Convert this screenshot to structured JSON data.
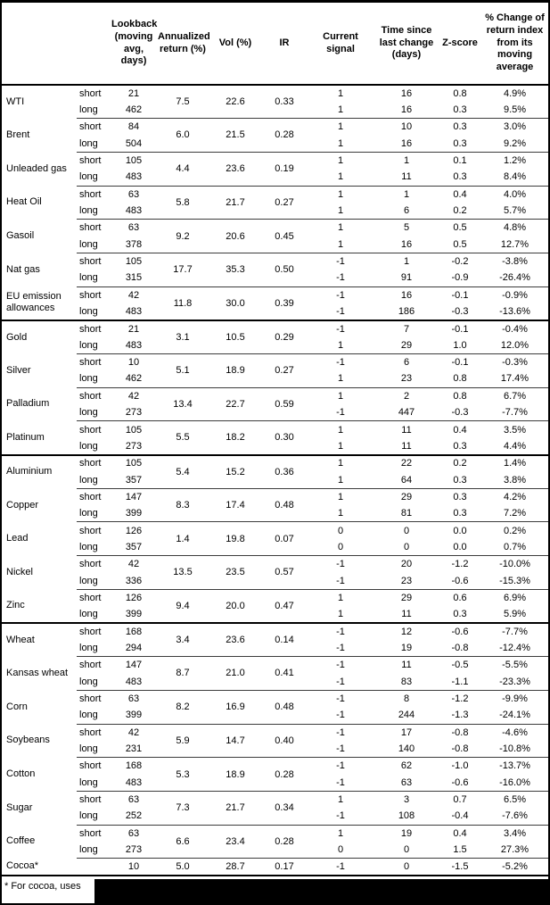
{
  "table": {
    "columns": [
      {
        "label": ""
      },
      {
        "label": ""
      },
      {
        "label": "Lookback\n(moving\navg, days)"
      },
      {
        "label": "Annualized\nreturn (%)"
      },
      {
        "label": "Vol (%)"
      },
      {
        "label": "IR"
      },
      {
        "label": "Current\nsignal"
      },
      {
        "label": "Time since\nlast change\n(days)"
      },
      {
        "label": "Z-score"
      },
      {
        "label": "% Change of\nreturn index\nfrom its\nmoving\naverage"
      }
    ],
    "row_labels": {
      "short": "short",
      "long": "long"
    },
    "sections": [
      {
        "name": "energy",
        "rows": [
          {
            "name": "WTI",
            "ann": "7.5",
            "vol": "22.6",
            "ir": "0.33",
            "short": [
              "21",
              "1",
              "16",
              "0.8",
              "4.9%"
            ],
            "long": [
              "462",
              "1",
              "16",
              "0.3",
              "9.5%"
            ]
          },
          {
            "name": "Brent",
            "ann": "6.0",
            "vol": "21.5",
            "ir": "0.28",
            "short": [
              "84",
              "1",
              "10",
              "0.3",
              "3.0%"
            ],
            "long": [
              "504",
              "1",
              "16",
              "0.3",
              "9.2%"
            ]
          },
          {
            "name": "Unleaded gas",
            "ann": "4.4",
            "vol": "23.6",
            "ir": "0.19",
            "short": [
              "105",
              "1",
              "1",
              "0.1",
              "1.2%"
            ],
            "long": [
              "483",
              "1",
              "11",
              "0.3",
              "8.4%"
            ]
          },
          {
            "name": "Heat Oil",
            "ann": "5.8",
            "vol": "21.7",
            "ir": "0.27",
            "short": [
              "63",
              "1",
              "1",
              "0.4",
              "4.0%"
            ],
            "long": [
              "483",
              "1",
              "6",
              "0.2",
              "5.7%"
            ]
          },
          {
            "name": "Gasoil",
            "ann": "9.2",
            "vol": "20.6",
            "ir": "0.45",
            "short": [
              "63",
              "1",
              "5",
              "0.5",
              "4.8%"
            ],
            "long": [
              "378",
              "1",
              "16",
              "0.5",
              "12.7%"
            ]
          },
          {
            "name": "Nat gas",
            "ann": "17.7",
            "vol": "35.3",
            "ir": "0.50",
            "short": [
              "105",
              "-1",
              "1",
              "-0.2",
              "-3.8%"
            ],
            "long": [
              "315",
              "-1",
              "91",
              "-0.9",
              "-26.4%"
            ]
          },
          {
            "name": "EU emission allowances",
            "ann": "11.8",
            "vol": "30.0",
            "ir": "0.39",
            "short": [
              "42",
              "-1",
              "16",
              "-0.1",
              "-0.9%"
            ],
            "long": [
              "483",
              "-1",
              "186",
              "-0.3",
              "-13.6%"
            ]
          }
        ]
      },
      {
        "name": "precious-metals",
        "rows": [
          {
            "name": "Gold",
            "ann": "3.1",
            "vol": "10.5",
            "ir": "0.29",
            "short": [
              "21",
              "-1",
              "7",
              "-0.1",
              "-0.4%"
            ],
            "long": [
              "483",
              "1",
              "29",
              "1.0",
              "12.0%"
            ]
          },
          {
            "name": "Silver",
            "ann": "5.1",
            "vol": "18.9",
            "ir": "0.27",
            "short": [
              "10",
              "-1",
              "6",
              "-0.1",
              "-0.3%"
            ],
            "long": [
              "462",
              "1",
              "23",
              "0.8",
              "17.4%"
            ]
          },
          {
            "name": "Palladium",
            "ann": "13.4",
            "vol": "22.7",
            "ir": "0.59",
            "short": [
              "42",
              "1",
              "2",
              "0.8",
              "6.7%"
            ],
            "long": [
              "273",
              "-1",
              "447",
              "-0.3",
              "-7.7%"
            ]
          },
          {
            "name": "Platinum",
            "ann": "5.5",
            "vol": "18.2",
            "ir": "0.30",
            "short": [
              "105",
              "1",
              "11",
              "0.4",
              "3.5%"
            ],
            "long": [
              "273",
              "1",
              "11",
              "0.3",
              "4.4%"
            ]
          }
        ]
      },
      {
        "name": "base-metals",
        "rows": [
          {
            "name": "Aluminium",
            "ann": "5.4",
            "vol": "15.2",
            "ir": "0.36",
            "short": [
              "105",
              "1",
              "22",
              "0.2",
              "1.4%"
            ],
            "long": [
              "357",
              "1",
              "64",
              "0.3",
              "3.8%"
            ]
          },
          {
            "name": "Copper",
            "ann": "8.3",
            "vol": "17.4",
            "ir": "0.48",
            "short": [
              "147",
              "1",
              "29",
              "0.3",
              "4.2%"
            ],
            "long": [
              "399",
              "1",
              "81",
              "0.3",
              "7.2%"
            ]
          },
          {
            "name": "Lead",
            "ann": "1.4",
            "vol": "19.8",
            "ir": "0.07",
            "short": [
              "126",
              "0",
              "0",
              "0.0",
              "0.2%"
            ],
            "long": [
              "357",
              "0",
              "0",
              "0.0",
              "0.7%"
            ]
          },
          {
            "name": "Nickel",
            "ann": "13.5",
            "vol": "23.5",
            "ir": "0.57",
            "short": [
              "42",
              "-1",
              "20",
              "-1.2",
              "-10.0%"
            ],
            "long": [
              "336",
              "-1",
              "23",
              "-0.6",
              "-15.3%"
            ]
          },
          {
            "name": "Zinc",
            "ann": "9.4",
            "vol": "20.0",
            "ir": "0.47",
            "short": [
              "126",
              "1",
              "29",
              "0.6",
              "6.9%"
            ],
            "long": [
              "399",
              "1",
              "11",
              "0.3",
              "5.9%"
            ]
          }
        ]
      },
      {
        "name": "agriculture",
        "rows": [
          {
            "name": "Wheat",
            "ann": "3.4",
            "vol": "23.6",
            "ir": "0.14",
            "short": [
              "168",
              "-1",
              "12",
              "-0.6",
              "-7.7%"
            ],
            "long": [
              "294",
              "-1",
              "19",
              "-0.8",
              "-12.4%"
            ]
          },
          {
            "name": "Kansas wheat",
            "ann": "8.7",
            "vol": "21.0",
            "ir": "0.41",
            "short": [
              "147",
              "-1",
              "11",
              "-0.5",
              "-5.5%"
            ],
            "long": [
              "483",
              "-1",
              "83",
              "-1.1",
              "-23.3%"
            ]
          },
          {
            "name": "Corn",
            "ann": "8.2",
            "vol": "16.9",
            "ir": "0.48",
            "short": [
              "63",
              "-1",
              "8",
              "-1.2",
              "-9.9%"
            ],
            "long": [
              "399",
              "-1",
              "244",
              "-1.3",
              "-24.1%"
            ]
          },
          {
            "name": "Soybeans",
            "ann": "5.9",
            "vol": "14.7",
            "ir": "0.40",
            "short": [
              "42",
              "-1",
              "17",
              "-0.8",
              "-4.6%"
            ],
            "long": [
              "231",
              "-1",
              "140",
              "-0.8",
              "-10.8%"
            ]
          },
          {
            "name": "Cotton",
            "ann": "5.3",
            "vol": "18.9",
            "ir": "0.28",
            "short": [
              "168",
              "-1",
              "62",
              "-1.0",
              "-13.7%"
            ],
            "long": [
              "483",
              "-1",
              "63",
              "-0.6",
              "-16.0%"
            ]
          },
          {
            "name": "Sugar",
            "ann": "7.3",
            "vol": "21.7",
            "ir": "0.34",
            "short": [
              "63",
              "1",
              "3",
              "0.7",
              "6.5%"
            ],
            "long": [
              "252",
              "-1",
              "108",
              "-0.4",
              "-7.6%"
            ]
          },
          {
            "name": "Coffee",
            "ann": "6.6",
            "vol": "23.4",
            "ir": "0.28",
            "short": [
              "63",
              "1",
              "19",
              "0.4",
              "3.4%"
            ],
            "long": [
              "273",
              "0",
              "0",
              "1.5",
              "27.3%"
            ]
          },
          {
            "name": "Cocoa*",
            "ann": "5.0",
            "vol": "28.7",
            "ir": "0.17",
            "single": [
              "10",
              "-1",
              "0",
              "-1.5",
              "-5.2%"
            ]
          }
        ]
      }
    ]
  },
  "footnote": {
    "text": "* For cocoa, uses"
  },
  "colors": {
    "border_strong": "#000000",
    "border_thin": "#3c3c3c",
    "redaction": "#000000",
    "background": "#ffffff",
    "text": "#000000"
  }
}
